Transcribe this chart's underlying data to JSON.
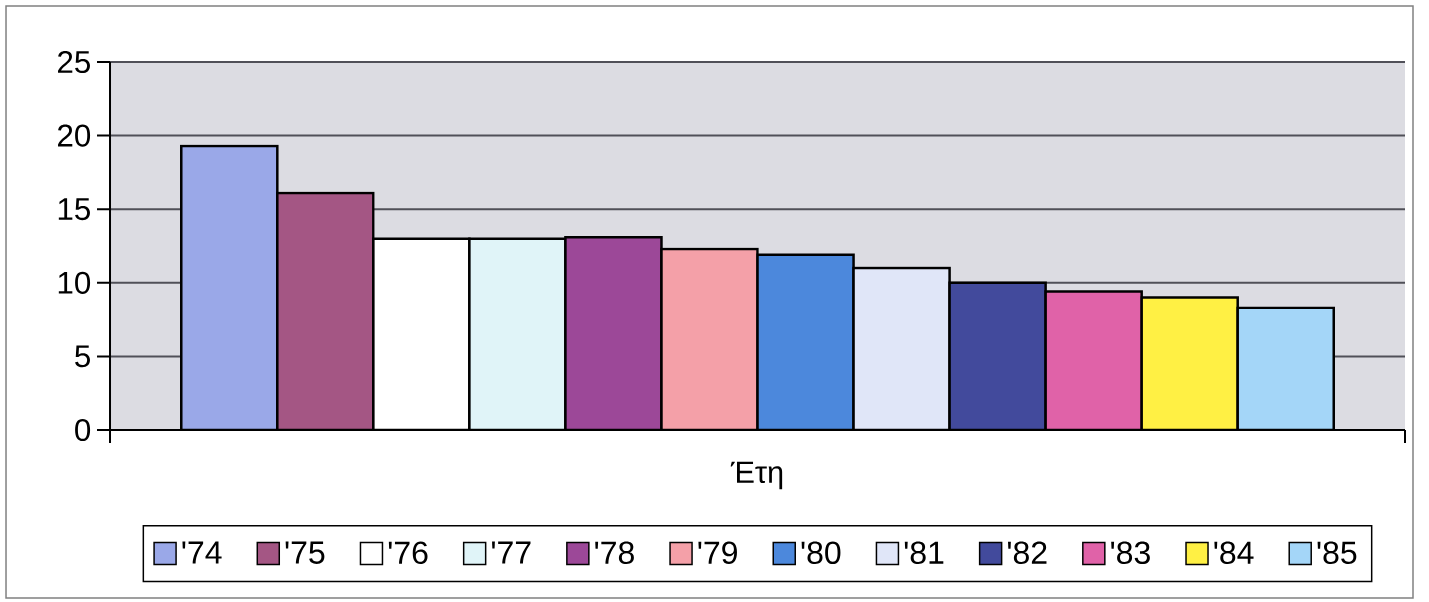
{
  "chart_data": {
    "type": "bar",
    "xlabel": "Έτη",
    "categories": [
      null
    ],
    "series": [
      {
        "name": "'74",
        "color": "#9aa8e8",
        "values": [
          19.3
        ]
      },
      {
        "name": "'75",
        "color": "#a45684",
        "values": [
          16.1
        ]
      },
      {
        "name": "'76",
        "color": "#ffffff",
        "values": [
          13.0
        ]
      },
      {
        "name": "'77",
        "color": "#e0f4f8",
        "values": [
          13.0
        ]
      },
      {
        "name": "'78",
        "color": "#9c4898",
        "values": [
          13.1
        ]
      },
      {
        "name": "'79",
        "color": "#f4a0a8",
        "values": [
          12.3
        ]
      },
      {
        "name": "'80",
        "color": "#4c88dc",
        "values": [
          11.9
        ]
      },
      {
        "name": "'81",
        "color": "#e0e6f8",
        "values": [
          11.0
        ]
      },
      {
        "name": "'82",
        "color": "#424a9c",
        "values": [
          10.0
        ]
      },
      {
        "name": "'83",
        "color": "#e062a8",
        "values": [
          9.4
        ]
      },
      {
        "name": "'84",
        "color": "#fff044",
        "values": [
          9.0
        ]
      },
      {
        "name": "'85",
        "color": "#a4d6f8",
        "values": [
          8.3
        ]
      }
    ],
    "ylim": [
      0,
      25
    ],
    "yticks": [
      0,
      5,
      10,
      15,
      20,
      25
    ],
    "grid": "y",
    "legend": "bottom"
  }
}
